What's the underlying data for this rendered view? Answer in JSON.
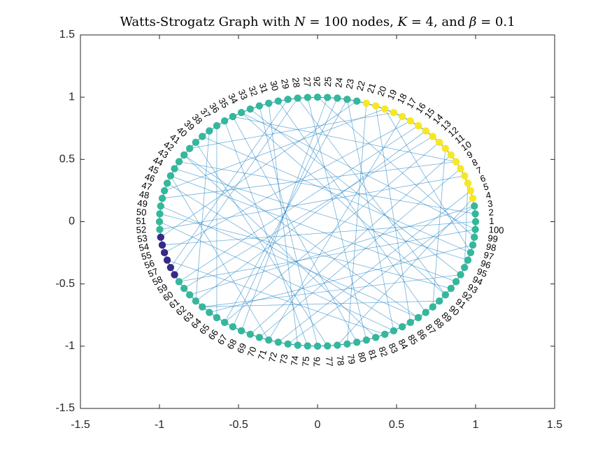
{
  "chart_data": {
    "type": "graph",
    "title": "Watts-Strogatz Graph with N = 100 nodes, K = 4, and β = 0.1",
    "title_parts": {
      "prefix": "Watts-Strogatz Graph with ",
      "n_var": "N",
      "n_val": " = 100 nodes, ",
      "k_var": "K",
      "k_val": " = 4, and ",
      "b_var": "β",
      "b_val": " = 0.1"
    },
    "layout": "circle",
    "num_nodes": 100,
    "xlim": [
      -1.5,
      1.5
    ],
    "ylim": [
      -1.5,
      1.5
    ],
    "xticks": [
      -1.5,
      -1,
      -0.5,
      0,
      0.5,
      1,
      1.5
    ],
    "yticks": [
      -1.5,
      -1,
      -0.5,
      0,
      0.5,
      1,
      1.5
    ],
    "xtick_labels": [
      "-1.5",
      "-1",
      "-0.5",
      "0",
      "0.5",
      "1",
      "1.5"
    ],
    "ytick_labels": [
      "-1.5",
      "-1",
      "-0.5",
      "0",
      "0.5",
      "1",
      "1.5"
    ],
    "node_labels": [
      "1",
      "2",
      "3",
      "4",
      "5",
      "6",
      "7",
      "8",
      "9",
      "10",
      "11",
      "12",
      "13",
      "14",
      "15",
      "16",
      "17",
      "18",
      "19",
      "20",
      "21",
      "22",
      "23",
      "24",
      "25",
      "26",
      "27",
      "28",
      "29",
      "30",
      "31",
      "32",
      "33",
      "34",
      "35",
      "36",
      "37",
      "38",
      "39",
      "40",
      "41",
      "42",
      "43",
      "44",
      "45",
      "46",
      "47",
      "48",
      "49",
      "50",
      "51",
      "52",
      "53",
      "54",
      "55",
      "56",
      "57",
      "58",
      "59",
      "60",
      "61",
      "62",
      "63",
      "64",
      "65",
      "66",
      "67",
      "68",
      "69",
      "70",
      "71",
      "72",
      "73",
      "74",
      "75",
      "76",
      "77",
      "78",
      "79",
      "80",
      "81",
      "82",
      "83",
      "84",
      "85",
      "86",
      "87",
      "88",
      "89",
      "90",
      "91",
      "92",
      "93",
      "94",
      "95",
      "96",
      "97",
      "98",
      "99",
      "100"
    ],
    "node_color_groups": {
      "yellow_nodes": [
        4,
        5,
        6,
        7,
        8,
        9,
        10,
        11,
        12,
        13,
        14,
        15,
        16,
        17,
        18,
        19,
        20,
        21
      ],
      "dark_nodes": [
        53,
        54,
        55,
        56,
        57,
        58
      ],
      "other_nodes": "teal"
    },
    "colors": {
      "yellow": "#F9E721",
      "dark": "#352A87",
      "teal": "#35B79B",
      "edge": "#0072BD",
      "axes": "#262626"
    },
    "edges": [
      [
        1,
        2
      ],
      [
        1,
        3
      ],
      [
        2,
        3
      ],
      [
        2,
        4
      ],
      [
        3,
        4
      ],
      [
        3,
        5
      ],
      [
        4,
        5
      ],
      [
        4,
        6
      ],
      [
        5,
        6
      ],
      [
        5,
        7
      ],
      [
        6,
        7
      ],
      [
        6,
        8
      ],
      [
        7,
        8
      ],
      [
        7,
        9
      ],
      [
        8,
        9
      ],
      [
        8,
        10
      ],
      [
        9,
        10
      ],
      [
        9,
        11
      ],
      [
        10,
        11
      ],
      [
        10,
        12
      ],
      [
        11,
        12
      ],
      [
        11,
        13
      ],
      [
        12,
        13
      ],
      [
        12,
        14
      ],
      [
        13,
        14
      ],
      [
        13,
        15
      ],
      [
        14,
        15
      ],
      [
        14,
        16
      ],
      [
        15,
        16
      ],
      [
        15,
        17
      ],
      [
        16,
        17
      ],
      [
        16,
        18
      ],
      [
        17,
        18
      ],
      [
        17,
        19
      ],
      [
        18,
        19
      ],
      [
        18,
        20
      ],
      [
        19,
        20
      ],
      [
        19,
        21
      ],
      [
        20,
        21
      ],
      [
        20,
        22
      ],
      [
        21,
        22
      ],
      [
        21,
        23
      ],
      [
        22,
        23
      ],
      [
        22,
        24
      ],
      [
        23,
        24
      ],
      [
        23,
        25
      ],
      [
        24,
        25
      ],
      [
        24,
        26
      ],
      [
        25,
        26
      ],
      [
        25,
        27
      ],
      [
        26,
        27
      ],
      [
        26,
        28
      ],
      [
        27,
        28
      ],
      [
        27,
        29
      ],
      [
        28,
        29
      ],
      [
        28,
        30
      ],
      [
        29,
        30
      ],
      [
        29,
        31
      ],
      [
        30,
        31
      ],
      [
        30,
        32
      ],
      [
        31,
        32
      ],
      [
        31,
        33
      ],
      [
        32,
        33
      ],
      [
        32,
        34
      ],
      [
        33,
        34
      ],
      [
        33,
        35
      ],
      [
        34,
        35
      ],
      [
        34,
        36
      ],
      [
        35,
        36
      ],
      [
        35,
        37
      ],
      [
        36,
        37
      ],
      [
        36,
        38
      ],
      [
        37,
        38
      ],
      [
        37,
        39
      ],
      [
        38,
        39
      ],
      [
        38,
        40
      ],
      [
        39,
        40
      ],
      [
        39,
        41
      ],
      [
        40,
        41
      ],
      [
        40,
        42
      ],
      [
        41,
        42
      ],
      [
        41,
        43
      ],
      [
        42,
        43
      ],
      [
        42,
        44
      ],
      [
        43,
        44
      ],
      [
        43,
        45
      ],
      [
        44,
        45
      ],
      [
        44,
        46
      ],
      [
        45,
        46
      ],
      [
        45,
        47
      ],
      [
        46,
        47
      ],
      [
        46,
        48
      ],
      [
        47,
        48
      ],
      [
        47,
        49
      ],
      [
        48,
        49
      ],
      [
        48,
        50
      ],
      [
        49,
        50
      ],
      [
        49,
        51
      ],
      [
        50,
        51
      ],
      [
        50,
        52
      ],
      [
        51,
        52
      ],
      [
        51,
        53
      ],
      [
        52,
        53
      ],
      [
        52,
        54
      ],
      [
        53,
        54
      ],
      [
        53,
        55
      ],
      [
        54,
        55
      ],
      [
        54,
        56
      ],
      [
        55,
        56
      ],
      [
        55,
        57
      ],
      [
        56,
        57
      ],
      [
        56,
        58
      ],
      [
        57,
        58
      ],
      [
        57,
        59
      ],
      [
        58,
        59
      ],
      [
        58,
        60
      ],
      [
        59,
        60
      ],
      [
        59,
        61
      ],
      [
        60,
        61
      ],
      [
        60,
        62
      ],
      [
        61,
        62
      ],
      [
        61,
        63
      ],
      [
        62,
        63
      ],
      [
        62,
        64
      ],
      [
        63,
        64
      ],
      [
        63,
        65
      ],
      [
        64,
        65
      ],
      [
        64,
        66
      ],
      [
        65,
        66
      ],
      [
        65,
        67
      ],
      [
        66,
        67
      ],
      [
        66,
        68
      ],
      [
        67,
        68
      ],
      [
        67,
        69
      ],
      [
        68,
        69
      ],
      [
        68,
        70
      ],
      [
        69,
        70
      ],
      [
        69,
        71
      ],
      [
        70,
        71
      ],
      [
        70,
        72
      ],
      [
        71,
        72
      ],
      [
        71,
        73
      ],
      [
        72,
        73
      ],
      [
        72,
        74
      ],
      [
        73,
        74
      ],
      [
        73,
        75
      ],
      [
        74,
        75
      ],
      [
        74,
        76
      ],
      [
        75,
        76
      ],
      [
        75,
        77
      ],
      [
        76,
        77
      ],
      [
        76,
        78
      ],
      [
        77,
        78
      ],
      [
        77,
        79
      ],
      [
        78,
        79
      ],
      [
        78,
        80
      ],
      [
        79,
        80
      ],
      [
        79,
        81
      ],
      [
        80,
        81
      ],
      [
        80,
        82
      ],
      [
        81,
        82
      ],
      [
        81,
        83
      ],
      [
        82,
        83
      ],
      [
        82,
        84
      ],
      [
        83,
        84
      ],
      [
        83,
        85
      ],
      [
        84,
        85
      ],
      [
        84,
        86
      ],
      [
        85,
        86
      ],
      [
        85,
        87
      ],
      [
        86,
        87
      ],
      [
        86,
        88
      ],
      [
        87,
        88
      ],
      [
        87,
        89
      ],
      [
        88,
        89
      ],
      [
        88,
        90
      ],
      [
        89,
        90
      ],
      [
        89,
        91
      ],
      [
        90,
        91
      ],
      [
        90,
        92
      ],
      [
        91,
        92
      ],
      [
        91,
        93
      ],
      [
        92,
        93
      ],
      [
        92,
        94
      ],
      [
        93,
        94
      ],
      [
        93,
        95
      ],
      [
        94,
        95
      ],
      [
        94,
        96
      ],
      [
        95,
        96
      ],
      [
        95,
        97
      ],
      [
        96,
        97
      ],
      [
        96,
        98
      ],
      [
        97,
        98
      ],
      [
        97,
        99
      ],
      [
        98,
        99
      ],
      [
        98,
        100
      ],
      [
        99,
        100
      ],
      [
        99,
        1
      ],
      [
        100,
        1
      ],
      [
        100,
        2
      ],
      [
        2,
        43
      ],
      [
        3,
        61
      ],
      [
        5,
        72
      ],
      [
        9,
        48
      ],
      [
        12,
        66
      ],
      [
        15,
        59
      ],
      [
        18,
        41
      ],
      [
        22,
        53
      ],
      [
        24,
        67
      ],
      [
        27,
        81
      ],
      [
        30,
        88
      ],
      [
        33,
        94
      ],
      [
        36,
        75
      ],
      [
        39,
        97
      ],
      [
        44,
        96
      ],
      [
        46,
        85
      ],
      [
        50,
        92
      ],
      [
        52,
        7
      ],
      [
        57,
        29
      ],
      [
        60,
        13
      ],
      [
        63,
        90
      ],
      [
        68,
        25
      ],
      [
        71,
        17
      ],
      [
        74,
        31
      ],
      [
        77,
        40
      ],
      [
        80,
        35
      ],
      [
        83,
        56
      ],
      [
        86,
        20
      ],
      [
        89,
        11
      ],
      [
        93,
        45
      ],
      [
        95,
        6
      ],
      [
        98,
        64
      ],
      [
        1,
        54
      ],
      [
        4,
        78
      ],
      [
        8,
        70
      ],
      [
        14,
        62
      ],
      [
        19,
        47
      ],
      [
        23,
        84
      ],
      [
        26,
        99
      ],
      [
        28,
        58
      ],
      [
        32,
        76
      ],
      [
        34,
        91
      ],
      [
        37,
        65
      ],
      [
        42,
        82
      ],
      [
        49,
        87
      ],
      [
        55,
        16
      ],
      [
        62,
        38
      ],
      [
        69,
        10
      ],
      [
        73,
        3
      ],
      [
        79,
        21
      ],
      [
        84,
        51
      ],
      [
        87,
        42
      ],
      [
        91,
        28
      ],
      [
        94,
        63
      ],
      [
        97,
        19
      ],
      [
        100,
        34
      ],
      [
        35,
        9
      ],
      [
        45,
        71
      ],
      [
        59,
        100
      ],
      [
        66,
        23
      ]
    ]
  }
}
